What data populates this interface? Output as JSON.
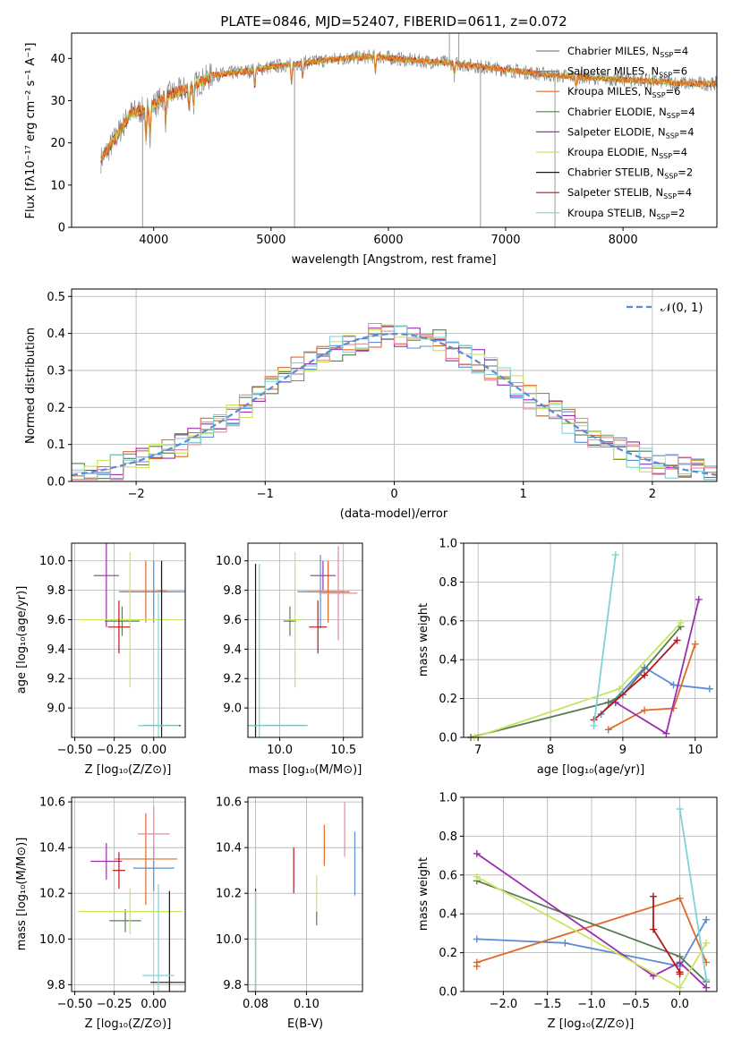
{
  "colors": [
    "#5b8bd6",
    "#e06a25",
    "#5c7a56",
    "#9b2fae",
    "#c8e65a",
    "#e88a9a",
    "#1a1a1a",
    "#b3181b",
    "#7ed3d6",
    "#808080"
  ],
  "chart_data": [
    {
      "id": "spectrum",
      "type": "line",
      "title": "PLATE=0846, MJD=52407, FIBERID=0611, z=0.072",
      "xlabel": "wavelength [Angstrom, rest frame]",
      "ylabel": "Flux [fλ10⁻¹⁷ erg cm⁻² s⁻¹ A⁻¹]",
      "xlim": [
        3300,
        8800
      ],
      "ylim": [
        0,
        46
      ],
      "xticks": [
        "4000",
        "5000",
        "6000",
        "7000",
        "8000"
      ],
      "yticks": [
        "0",
        "10",
        "20",
        "30",
        "40"
      ],
      "grid": false,
      "legend_position": "top-right",
      "continuum": [
        [
          3550,
          16
        ],
        [
          3650,
          20
        ],
        [
          3800,
          27
        ],
        [
          3950,
          28
        ],
        [
          4100,
          31
        ],
        [
          4300,
          33
        ],
        [
          4500,
          36
        ],
        [
          4800,
          37
        ],
        [
          5000,
          38
        ],
        [
          5300,
          39
        ],
        [
          5600,
          40
        ],
        [
          5900,
          40.5
        ],
        [
          6200,
          39.5
        ],
        [
          6500,
          39
        ],
        [
          6800,
          38
        ],
        [
          7100,
          37
        ],
        [
          7400,
          36
        ],
        [
          7700,
          35.5
        ],
        [
          8000,
          35
        ],
        [
          8300,
          34.5
        ],
        [
          8600,
          34
        ],
        [
          8800,
          34
        ]
      ],
      "spikes": [
        [
          5200,
          0
        ],
        [
          6785,
          0
        ],
        [
          7420,
          0
        ],
        [
          3905,
          0
        ],
        [
          6520,
          46
        ],
        [
          6600,
          46
        ]
      ],
      "legend": [
        {
          "label": "Chabrier MILES, N",
          "sub": "SSP",
          "suffix": "=4"
        },
        {
          "label": "Salpeter MILES, N",
          "sub": "SSP",
          "suffix": "=6"
        },
        {
          "label": "Kroupa MILES, N",
          "sub": "SSP",
          "suffix": "=6"
        },
        {
          "label": "Chabrier ELODIE, N",
          "sub": "SSP",
          "suffix": "=4"
        },
        {
          "label": "Salpeter ELODIE, N",
          "sub": "SSP",
          "suffix": "=4"
        },
        {
          "label": "Kroupa ELODIE, N",
          "sub": "SSP",
          "suffix": "=4"
        },
        {
          "label": "Chabrier STELIB, N",
          "sub": "SSP",
          "suffix": "=2"
        },
        {
          "label": "Salpeter STELIB, N",
          "sub": "SSP",
          "suffix": "=4"
        },
        {
          "label": "Kroupa STELIB, N",
          "sub": "SSP",
          "suffix": "=2"
        }
      ]
    },
    {
      "id": "residuals",
      "type": "histogram",
      "xlabel": "(data-model)/error",
      "ylabel": "Normed distribution",
      "xlim": [
        -2.5,
        2.5
      ],
      "ylim": [
        0,
        0.52
      ],
      "xticks": [
        -2,
        -1,
        0,
        1,
        2
      ],
      "xticklabels": [
        "−2",
        "−1",
        "0",
        "1",
        "2"
      ],
      "yticks": [
        0.0,
        0.1,
        0.2,
        0.3,
        0.4,
        0.5
      ],
      "yticklabels": [
        "0.0",
        "0.1",
        "0.2",
        "0.3",
        "0.4",
        "0.5"
      ],
      "grid": true,
      "legend_position": "top-right",
      "legend": [
        {
          "label": "𝒩(0, 1)",
          "color": "#5b8bd6",
          "dashed": true
        }
      ],
      "bin_width": 0.1
    },
    {
      "id": "age-vs-Z",
      "type": "errorbar",
      "xlabel": "Z [log₁₀(Z/Z⊙)]",
      "ylabel": "age  [log₁₀(age/yr)]",
      "xlim": [
        -0.52,
        0.2
      ],
      "ylim": [
        8.8,
        10.12
      ],
      "xticks": [
        -0.5,
        -0.25,
        0.0
      ],
      "xticklabels": [
        "−0.50",
        "−0.25",
        "0.00"
      ],
      "yticks": [
        9.0,
        9.2,
        9.4,
        9.6,
        9.8,
        10.0
      ],
      "yticklabels": [
        "9.0",
        "9.2",
        "9.4",
        "9.6",
        "9.8",
        "10.0"
      ],
      "points": [
        {
          "x": 0.0,
          "y": 9.79,
          "xerr": 0.22,
          "yerr": 0.21,
          "color": 0
        },
        {
          "x": -0.05,
          "y": 9.79,
          "xerr": 0.15,
          "yerr": 0.21,
          "color": 1
        },
        {
          "x": -0.2,
          "y": 9.59,
          "xerr": 0.11,
          "yerr": 0.1,
          "color": 2
        },
        {
          "x": -0.3,
          "y": 9.9,
          "xerr": 0.08,
          "yerr": 0.35,
          "color": 3
        },
        {
          "x": -0.15,
          "y": 9.6,
          "xerr": 0.33,
          "yerr": 0.46,
          "color": 4
        },
        {
          "x": 0.05,
          "y": 9.8,
          "xerr": 0.03,
          "yerr": 0.2,
          "color": 5
        },
        {
          "x": 0.05,
          "y": 8.88,
          "xerr": 0.12,
          "yerr": 1.12,
          "color": 6
        },
        {
          "x": -0.22,
          "y": 9.55,
          "xerr": 0.07,
          "yerr": 0.18,
          "color": 7
        },
        {
          "x": 0.03,
          "y": 8.88,
          "xerr": 0.13,
          "yerr": 0.9,
          "color": 8
        }
      ]
    },
    {
      "id": "age-vs-mass",
      "type": "errorbar",
      "xlabel": "mass [log₁₀(M/M⊙)]",
      "ylabel": "",
      "xlim": [
        9.75,
        10.65
      ],
      "ylim": [
        8.8,
        10.12
      ],
      "xticks": [
        10.0,
        10.5
      ],
      "xticklabels": [
        "10.0",
        "10.5"
      ],
      "yticks": [
        9.0,
        9.2,
        9.4,
        9.6,
        9.8,
        10.0
      ],
      "yticklabels": [
        "9.0",
        "9.2",
        "9.4",
        "9.6",
        "9.8",
        "10.0"
      ],
      "points": [
        {
          "x": 10.32,
          "y": 9.79,
          "xerr": 0.18,
          "yerr": 0.25,
          "color": 0
        },
        {
          "x": 10.38,
          "y": 9.79,
          "xerr": 0.17,
          "yerr": 0.21,
          "color": 1
        },
        {
          "x": 10.08,
          "y": 9.59,
          "xerr": 0.05,
          "yerr": 0.1,
          "color": 2
        },
        {
          "x": 10.34,
          "y": 9.9,
          "xerr": 0.1,
          "yerr": 0.1,
          "color": 3
        },
        {
          "x": 10.12,
          "y": 9.6,
          "xerr": 0.05,
          "yerr": 0.46,
          "color": 4
        },
        {
          "x": 10.46,
          "y": 9.78,
          "xerr": 0.15,
          "yerr": 0.32,
          "color": 5
        },
        {
          "x": 9.81,
          "y": 8.88,
          "xerr": 0.4,
          "yerr": 1.1,
          "color": 6
        },
        {
          "x": 10.3,
          "y": 9.55,
          "xerr": 0.07,
          "yerr": 0.18,
          "color": 7
        },
        {
          "x": 9.84,
          "y": 8.88,
          "xerr": 0.38,
          "yerr": 1.1,
          "color": 8
        }
      ]
    },
    {
      "id": "mass-weight-vs-age",
      "type": "line",
      "xlabel": "age  [log₁₀(age/yr)]",
      "ylabel": "mass weight",
      "xlim": [
        6.8,
        10.3
      ],
      "ylim": [
        0,
        1.0
      ],
      "xticks": [
        7,
        8,
        9,
        10
      ],
      "xticklabels": [
        "7",
        "8",
        "9",
        "10"
      ],
      "yticks": [
        0.0,
        0.2,
        0.4,
        0.6,
        0.8,
        1.0
      ],
      "yticklabels": [
        "0.0",
        "0.2",
        "0.4",
        "0.6",
        "0.8",
        "1.0"
      ],
      "series": [
        {
          "color": 0,
          "points": [
            [
              8.7,
              0.12
            ],
            [
              9.3,
              0.36
            ],
            [
              9.7,
              0.27
            ],
            [
              10.2,
              0.25
            ]
          ]
        },
        {
          "color": 1,
          "points": [
            [
              8.8,
              0.04
            ],
            [
              9.3,
              0.14
            ],
            [
              9.7,
              0.15
            ],
            [
              10.0,
              0.48
            ]
          ]
        },
        {
          "color": 2,
          "points": [
            [
              6.9,
              0.0
            ],
            [
              8.8,
              0.18
            ],
            [
              9.0,
              0.22
            ],
            [
              9.8,
              0.57
            ]
          ]
        },
        {
          "color": 3,
          "points": [
            [
              8.9,
              0.18
            ],
            [
              9.6,
              0.02
            ],
            [
              10.05,
              0.71
            ]
          ]
        },
        {
          "color": 4,
          "points": [
            [
              6.95,
              0.0
            ],
            [
              8.95,
              0.25
            ],
            [
              9.8,
              0.59
            ]
          ]
        },
        {
          "color": 7,
          "points": [
            [
              8.6,
              0.09
            ],
            [
              9.3,
              0.32
            ],
            [
              9.75,
              0.5
            ]
          ]
        },
        {
          "color": 8,
          "points": [
            [
              8.6,
              0.06
            ],
            [
              8.9,
              0.94
            ]
          ]
        }
      ]
    },
    {
      "id": "mass-vs-Z",
      "type": "errorbar",
      "xlabel": "Z [log₁₀(Z/Z⊙)]",
      "ylabel": "mass [log₁₀(M/M⊙)]",
      "xlim": [
        -0.52,
        0.2
      ],
      "ylim": [
        9.77,
        10.62
      ],
      "xticks": [
        -0.5,
        -0.25,
        0.0
      ],
      "xticklabels": [
        "−0.50",
        "−0.25",
        "0.00"
      ],
      "yticks": [
        9.8,
        10.0,
        10.2,
        10.4,
        10.6
      ],
      "yticklabels": [
        "9.8",
        "10.0",
        "10.2",
        "10.4",
        "10.6"
      ],
      "points": [
        {
          "x": 0.0,
          "y": 10.31,
          "xerr": 0.13,
          "yerr": 0.1,
          "color": 0
        },
        {
          "x": -0.05,
          "y": 10.35,
          "xerr": 0.2,
          "yerr": 0.2,
          "color": 1
        },
        {
          "x": -0.18,
          "y": 10.08,
          "xerr": 0.1,
          "yerr": 0.05,
          "color": 2
        },
        {
          "x": -0.3,
          "y": 10.34,
          "xerr": 0.1,
          "yerr": 0.08,
          "color": 3
        },
        {
          "x": -0.15,
          "y": 10.12,
          "xerr": 0.33,
          "yerr": 0.1,
          "color": 4
        },
        {
          "x": 0.0,
          "y": 10.46,
          "xerr": 0.1,
          "yerr": 0.12,
          "color": 5
        },
        {
          "x": 0.1,
          "y": 9.81,
          "xerr": 0.12,
          "yerr": 0.4,
          "color": 6
        },
        {
          "x": -0.22,
          "y": 10.3,
          "xerr": 0.04,
          "yerr": 0.08,
          "color": 7
        },
        {
          "x": 0.03,
          "y": 9.84,
          "xerr": 0.1,
          "yerr": 0.4,
          "color": 8
        }
      ]
    },
    {
      "id": "mass-vs-ebv",
      "type": "errorbar",
      "xlabel": "E(B-V)",
      "ylabel": "",
      "xlim": [
        0.077,
        0.122
      ],
      "ylim": [
        9.77,
        10.62
      ],
      "xticks": [
        0.08,
        0.1
      ],
      "xticklabels": [
        "0.08",
        "0.10"
      ],
      "yticks": [
        9.8,
        10.0,
        10.2,
        10.4,
        10.6
      ],
      "yticklabels": [
        "9.8",
        "10.0",
        "10.2",
        "10.4",
        "10.6"
      ],
      "points": [
        {
          "x": 0.119,
          "y": 10.33,
          "xerr": 0,
          "yerr": 0.14,
          "color": 0
        },
        {
          "x": 0.107,
          "y": 10.41,
          "xerr": 0,
          "yerr": 0.09,
          "color": 1
        },
        {
          "x": 0.104,
          "y": 10.09,
          "xerr": 0,
          "yerr": 0.03,
          "color": 2
        },
        {
          "x": 0.104,
          "y": 10.2,
          "xerr": 0,
          "yerr": 0.08,
          "color": 4
        },
        {
          "x": 0.115,
          "y": 10.48,
          "xerr": 0,
          "yerr": 0.12,
          "color": 5
        },
        {
          "x": 0.08,
          "y": 9.82,
          "xerr": 0,
          "yerr": 0.4,
          "color": 6
        },
        {
          "x": 0.095,
          "y": 10.3,
          "xerr": 0,
          "yerr": 0.1,
          "color": 7
        },
        {
          "x": 0.08,
          "y": 9.84,
          "xerr": 0,
          "yerr": 0.37,
          "color": 8
        }
      ]
    },
    {
      "id": "mass-weight-vs-Z",
      "type": "line",
      "xlabel": "Z [log₁₀(Z/Z⊙)]",
      "ylabel": "mass weight",
      "xlim": [
        -2.45,
        0.42
      ],
      "ylim": [
        0,
        1.0
      ],
      "xticks": [
        -2.0,
        -1.5,
        -1.0,
        -0.5,
        0.0
      ],
      "xticklabels": [
        "−2.0",
        "−1.5",
        "−1.0",
        "−0.5",
        "0.0"
      ],
      "yticks": [
        0.0,
        0.2,
        0.4,
        0.6,
        0.8,
        1.0
      ],
      "yticklabels": [
        "0.0",
        "0.2",
        "0.4",
        "0.6",
        "0.8",
        "1.0"
      ],
      "series": [
        {
          "color": 0,
          "points": [
            [
              -2.3,
              0.27
            ],
            [
              -1.3,
              0.25
            ],
            [
              0.0,
              0.13
            ],
            [
              0.3,
              0.37
            ]
          ]
        },
        {
          "color": 1,
          "points": [
            [
              -2.3,
              0.13
            ],
            [
              -2.3,
              0.15
            ],
            [
              0.0,
              0.48
            ],
            [
              0.3,
              0.15
            ]
          ]
        },
        {
          "color": 2,
          "points": [
            [
              -2.3,
              0.57
            ],
            [
              0.0,
              0.18
            ],
            [
              0.3,
              0.05
            ]
          ]
        },
        {
          "color": 3,
          "points": [
            [
              -2.3,
              0.71
            ],
            [
              -0.3,
              0.08
            ],
            [
              0.0,
              0.15
            ],
            [
              0.3,
              0.02
            ]
          ]
        },
        {
          "color": 4,
          "points": [
            [
              -2.3,
              0.59
            ],
            [
              0.0,
              0.02
            ],
            [
              0.3,
              0.25
            ]
          ]
        },
        {
          "color": 7,
          "points": [
            [
              -0.3,
              0.49
            ],
            [
              -0.3,
              0.32
            ],
            [
              0.0,
              0.1
            ],
            [
              0.0,
              0.09
            ]
          ]
        },
        {
          "color": 8,
          "points": [
            [
              0.0,
              0.94
            ],
            [
              0.3,
              0.06
            ]
          ]
        }
      ]
    }
  ]
}
